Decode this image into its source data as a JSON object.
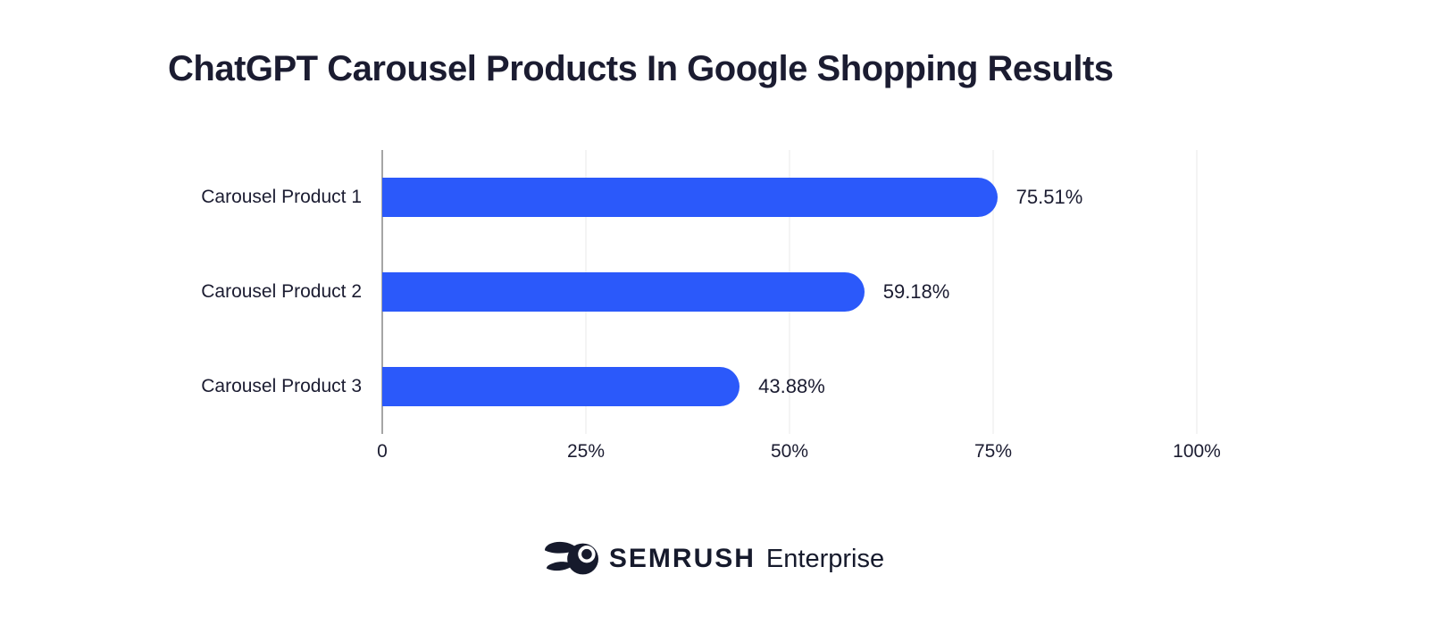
{
  "title": "ChatGPT Carousel Products In Google Shopping Results",
  "chart_data": {
    "type": "bar",
    "orientation": "horizontal",
    "title": "ChatGPT Carousel Products In Google Shopping Results",
    "categories": [
      "Carousel Product 1",
      "Carousel Product 2",
      "Carousel Product 3"
    ],
    "values": [
      75.51,
      59.18,
      43.88
    ],
    "value_labels": [
      "75.51%",
      "59.18%",
      "43.88%"
    ],
    "xlim": [
      0,
      100
    ],
    "ticks": [
      {
        "value": 0,
        "label": "0"
      },
      {
        "value": 25,
        "label": "25%"
      },
      {
        "value": 50,
        "label": "50%"
      },
      {
        "value": 75,
        "label": "75%"
      },
      {
        "value": 100,
        "label": "100%"
      }
    ],
    "grid": true,
    "legend": "none",
    "bar_color": "#2B59FA"
  },
  "colors": {
    "bar": "#2B59FA",
    "text": "#1B1C31",
    "gridline": "#E8E8E8",
    "zero_axis": "#A5A5A5",
    "background": "#FFFFFF",
    "logo": "#161A2C"
  },
  "footer": {
    "brand": "SEMRUSH",
    "suffix": "Enterprise"
  }
}
